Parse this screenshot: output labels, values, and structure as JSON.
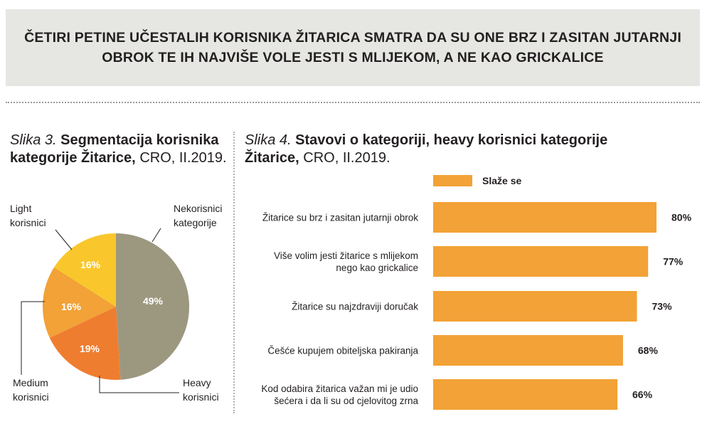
{
  "header": {
    "title_line1": "ČETIRI PETINE UČESTALIH KORISNIKA ŽITARICA SMATRA DA SU ONE BRZ I ZASITAN JUTARNJI",
    "title_line2": "OBROK TE IH NAJVIŠE VOLE JESTI S MLIJEKOM, A NE KAO GRICKALICE"
  },
  "figure3": {
    "prefix": "Slika 3.",
    "title_a": "Segmentacija korisnika",
    "title_b": "kategorije Žitarice,",
    "suffix": "CRO, II.2019."
  },
  "figure4": {
    "prefix": "Slika 4.",
    "title_a": "Stavovi o kategoriji, heavy korisnici kategorije",
    "title_b": "Žitarice,",
    "suffix": "CRO, II.2019."
  },
  "chart_data": [
    {
      "type": "pie",
      "slices": [
        {
          "label": [
            "Nekorisnici",
            "kategorije"
          ],
          "value": 49,
          "display": "49%",
          "color": "#9c9880"
        },
        {
          "label": [
            "Heavy",
            "korisnici"
          ],
          "value": 19,
          "display": "19%",
          "color": "#ef7d30"
        },
        {
          "label": [
            "Medium",
            "korisnici"
          ],
          "value": 16,
          "display": "16%",
          "color": "#f2a236"
        },
        {
          "label": [
            "Light",
            "korisnici"
          ],
          "value": 16,
          "display": "16%",
          "color": "#f9c72c"
        }
      ]
    },
    {
      "type": "bar",
      "orientation": "horizontal",
      "legend": {
        "label": "Slaže se",
        "color": "#f2a236"
      },
      "categories": [
        [
          "Žitarice su brz i zasitan jutarnji obrok"
        ],
        [
          "Više volim jesti žitarice s mlijekom",
          "nego kao grickalice"
        ],
        [
          "Žitarice su najzdraviji doručak"
        ],
        [
          "Češće kupujem obiteljska pakiranja"
        ],
        [
          "Kod odabira žitarica važan mi je udio",
          "šećera i da li su od cjelovitog zrna"
        ]
      ],
      "values": [
        80,
        77,
        73,
        68,
        66
      ],
      "value_labels": [
        "80%",
        "77%",
        "73%",
        "68%",
        "66%"
      ],
      "xlim": [
        0,
        80
      ],
      "bar_color": "#f2a236"
    }
  ]
}
